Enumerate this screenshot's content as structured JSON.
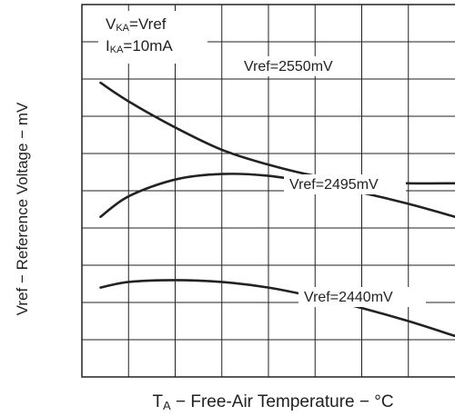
{
  "chart_data": {
    "type": "line",
    "title": "",
    "xlabel": "T",
    "xlabel_sub": "A",
    "xlabel_rest": " − Free-Air Temperature − °C",
    "ylabel": "Vref − Reference Voltage − mV",
    "x_range": [
      -50,
      150
    ],
    "x_gridlines": 8,
    "y_gridlines": 10,
    "grid": true,
    "conditions": {
      "line1": {
        "main": "V",
        "sub": "KA",
        "rest": "=Vref"
      },
      "line2": {
        "main": "I",
        "sub": "KA",
        "rest": "=10mA"
      }
    },
    "series": [
      {
        "name": "Vref=2550mV",
        "points": [
          [
            -40,
            0.21
          ],
          [
            -25,
            0.26
          ],
          [
            0,
            0.33
          ],
          [
            25,
            0.39
          ],
          [
            50,
            0.43
          ],
          [
            75,
            0.46
          ],
          [
            100,
            0.475
          ],
          [
            125,
            0.48
          ],
          [
            150,
            0.48
          ]
        ]
      },
      {
        "name": "Vref=2495mV",
        "points": [
          [
            -40,
            0.57
          ],
          [
            -25,
            0.515
          ],
          [
            0,
            0.47
          ],
          [
            25,
            0.455
          ],
          [
            50,
            0.46
          ],
          [
            75,
            0.48
          ],
          [
            100,
            0.505
          ],
          [
            125,
            0.535
          ],
          [
            150,
            0.57
          ]
        ]
      },
      {
        "name": "Vref=2440mV",
        "points": [
          [
            -40,
            0.76
          ],
          [
            -25,
            0.745
          ],
          [
            0,
            0.74
          ],
          [
            25,
            0.745
          ],
          [
            50,
            0.76
          ],
          [
            75,
            0.785
          ],
          [
            100,
            0.815
          ],
          [
            125,
            0.85
          ],
          [
            150,
            0.89
          ]
        ]
      }
    ]
  }
}
